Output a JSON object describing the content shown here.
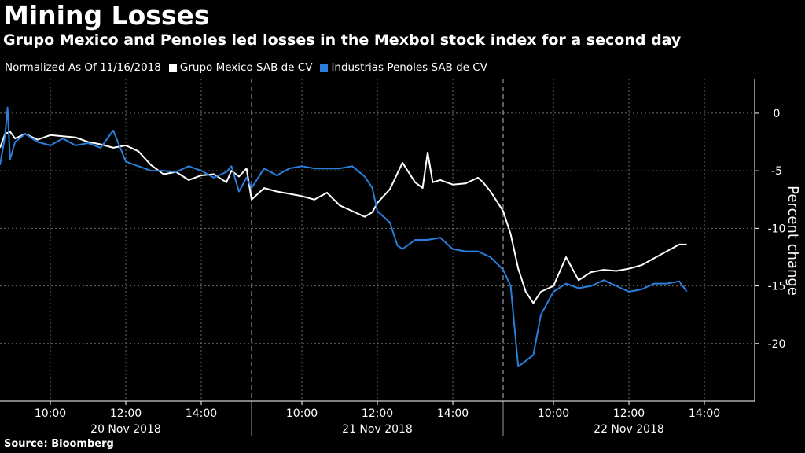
{
  "header": {
    "title": "Mining Losses",
    "subtitle": "Grupo Mexico and Penoles led losses in the Mexbol stock index for a second day"
  },
  "legend": {
    "note": "Normalized As Of 11/16/2018",
    "items": [
      {
        "label": "Grupo Mexico SAB de CV",
        "color": "#ffffff"
      },
      {
        "label": "Industrias Penoles SAB de CV",
        "color": "#2a7fdc"
      }
    ]
  },
  "source": "Source: Bloomberg",
  "chart_data": {
    "type": "line",
    "title": "Mining Losses",
    "ylabel": "Percent change",
    "ylim": [
      -25,
      3
    ],
    "yticks": [
      0,
      -5,
      -10,
      -15,
      -20
    ],
    "xlim": [
      0,
      3
    ],
    "time_ticks": [
      {
        "label": "10:00",
        "x": 0.2
      },
      {
        "label": "12:00",
        "x": 0.5
      },
      {
        "label": "14:00",
        "x": 0.8
      },
      {
        "label": "10:00",
        "x": 1.2
      },
      {
        "label": "12:00",
        "x": 1.5
      },
      {
        "label": "14:00",
        "x": 1.8
      },
      {
        "label": "10:00",
        "x": 2.2
      },
      {
        "label": "12:00",
        "x": 2.5
      },
      {
        "label": "14:00",
        "x": 2.8
      }
    ],
    "day_labels": [
      {
        "label": "20 Nov 2018",
        "x": 0.5
      },
      {
        "label": "21 Nov 2018",
        "x": 1.5
      },
      {
        "label": "22 Nov 2018",
        "x": 2.5
      }
    ],
    "day_separators": [
      1.0,
      2.0
    ],
    "series": [
      {
        "name": "Grupo Mexico SAB de CV",
        "color": "#ffffff",
        "x": [
          0,
          0.02,
          0.04,
          0.06,
          0.1,
          0.15,
          0.2,
          0.25,
          0.3,
          0.35,
          0.4,
          0.45,
          0.5,
          0.55,
          0.6,
          0.65,
          0.7,
          0.75,
          0.8,
          0.85,
          0.9,
          0.92,
          0.95,
          0.98,
          1.0,
          1.05,
          1.1,
          1.15,
          1.2,
          1.25,
          1.3,
          1.35,
          1.4,
          1.45,
          1.48,
          1.5,
          1.55,
          1.6,
          1.65,
          1.68,
          1.7,
          1.72,
          1.75,
          1.8,
          1.85,
          1.9,
          1.92,
          1.95,
          2.0,
          2.03,
          2.06,
          2.09,
          2.12,
          2.15,
          2.2,
          2.25,
          2.3,
          2.35,
          2.4,
          2.45,
          2.5,
          2.55,
          2.6,
          2.65,
          2.7,
          2.73
        ],
        "values": [
          -3.0,
          -1.8,
          -1.6,
          -2.2,
          -1.8,
          -2.3,
          -1.9,
          -2.0,
          -2.1,
          -2.5,
          -2.7,
          -3.0,
          -2.8,
          -3.3,
          -4.5,
          -5.3,
          -5.1,
          -5.8,
          -5.4,
          -5.3,
          -6.0,
          -5.0,
          -5.5,
          -4.8,
          -7.5,
          -6.5,
          -6.8,
          -7.0,
          -7.2,
          -7.5,
          -6.9,
          -8.0,
          -8.5,
          -9.0,
          -8.6,
          -7.8,
          -6.6,
          -4.3,
          -6.0,
          -6.5,
          -3.4,
          -6.0,
          -5.8,
          -6.2,
          -6.1,
          -5.6,
          -6.0,
          -6.8,
          -8.5,
          -10.5,
          -13.5,
          -15.5,
          -16.5,
          -15.5,
          -15.0,
          -12.5,
          -14.5,
          -13.8,
          -13.6,
          -13.7,
          -13.5,
          -13.2,
          -12.6,
          -12.0,
          -11.4,
          -11.4
        ]
      },
      {
        "name": "Industrias Penoles SAB de CV",
        "color": "#2a7fdc",
        "x": [
          0,
          0.02,
          0.03,
          0.04,
          0.06,
          0.1,
          0.15,
          0.2,
          0.25,
          0.3,
          0.35,
          0.4,
          0.45,
          0.5,
          0.55,
          0.6,
          0.65,
          0.7,
          0.75,
          0.8,
          0.85,
          0.9,
          0.92,
          0.95,
          0.98,
          1.0,
          1.05,
          1.1,
          1.15,
          1.2,
          1.25,
          1.3,
          1.35,
          1.4,
          1.45,
          1.48,
          1.5,
          1.55,
          1.58,
          1.6,
          1.65,
          1.7,
          1.75,
          1.8,
          1.85,
          1.9,
          1.95,
          2.0,
          2.03,
          2.06,
          2.09,
          2.12,
          2.15,
          2.2,
          2.25,
          2.3,
          2.35,
          2.4,
          2.45,
          2.5,
          2.55,
          2.6,
          2.65,
          2.7,
          2.73
        ],
        "values": [
          -4.5,
          -2.0,
          0.5,
          -4.0,
          -2.5,
          -1.8,
          -2.5,
          -2.8,
          -2.2,
          -2.8,
          -2.6,
          -3.0,
          -1.5,
          -4.2,
          -4.6,
          -5.0,
          -5.0,
          -5.1,
          -4.6,
          -5.0,
          -5.6,
          -5.1,
          -4.6,
          -6.8,
          -5.6,
          -6.5,
          -4.8,
          -5.4,
          -4.8,
          -4.6,
          -4.8,
          -4.8,
          -4.8,
          -4.6,
          -5.5,
          -6.5,
          -8.5,
          -9.5,
          -11.5,
          -11.8,
          -11.0,
          -11.0,
          -10.8,
          -11.8,
          -12.0,
          -12.0,
          -12.5,
          -13.6,
          -15.0,
          -22.0,
          -21.5,
          -21.0,
          -17.5,
          -15.5,
          -14.8,
          -15.2,
          -15.0,
          -14.5,
          -15.0,
          -15.5,
          -15.3,
          -14.8,
          -14.8,
          -14.6,
          -15.5
        ]
      }
    ]
  }
}
